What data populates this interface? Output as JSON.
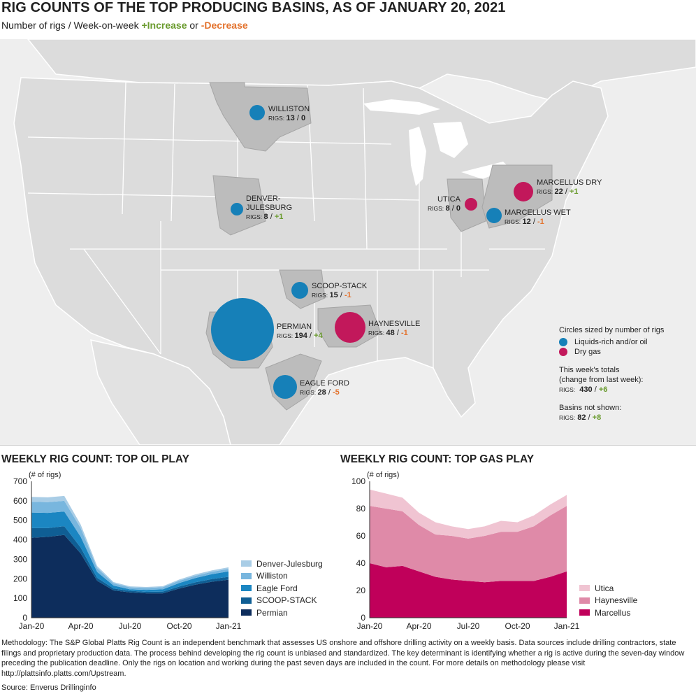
{
  "title": "RIG COUNTS OF THE TOP PRODUCING BASINS, AS OF JANUARY 20, 2021",
  "subtitle": {
    "prefix": "Number of rigs / Week-on-week ",
    "increase": "+Increase",
    "or": " or ",
    "decrease": "-Decrease"
  },
  "colors": {
    "oil": "#1680b8",
    "gas": "#c2185b",
    "increase": "#6a9b2e",
    "decrease": "#e3732e",
    "land": "#dcdcdc",
    "basin": "#bcbcbc"
  },
  "basins": [
    {
      "name": "WILLISTON",
      "rigs_label": "RIGS:",
      "rigs": "13",
      "sep": " / ",
      "change": "0",
      "change_type": "zero",
      "type": "oil"
    },
    {
      "name": "DENVER-",
      "name2": "JULESBURG",
      "rigs_label": "RIGS:",
      "rigs": "8",
      "sep": " / ",
      "change": "+1",
      "change_type": "inc",
      "type": "oil"
    },
    {
      "name": "MARCELLUS DRY",
      "rigs_label": "RIGS:",
      "rigs": "22",
      "sep": " / ",
      "change": "+1",
      "change_type": "inc",
      "type": "gas"
    },
    {
      "name": "UTICA",
      "rigs_label": "RIGS:",
      "rigs": "8",
      "sep": " / ",
      "change": "0",
      "change_type": "zero",
      "type": "gas"
    },
    {
      "name": "MARCELLUS WET",
      "rigs_label": "RIGS:",
      "rigs": "12",
      "sep": " / ",
      "change": "-1",
      "change_type": "dec",
      "type": "oil"
    },
    {
      "name": "SCOOP-STACK",
      "rigs_label": "RIGS:",
      "rigs": "15",
      "sep": " / ",
      "change": "-1",
      "change_type": "dec",
      "type": "oil"
    },
    {
      "name": "PERMIAN",
      "rigs_label": "RIGS:",
      "rigs": "194",
      "sep": " / ",
      "change": "+4",
      "change_type": "inc",
      "type": "oil"
    },
    {
      "name": "HAYNESVILLE",
      "rigs_label": "RIGS:",
      "rigs": "48",
      "sep": " / ",
      "change": "-1",
      "change_type": "dec",
      "type": "gas"
    },
    {
      "name": "EAGLE FORD",
      "rigs_label": "RIGS:",
      "rigs": "28",
      "sep": " / ",
      "change": "-5",
      "change_type": "dec",
      "type": "oil"
    }
  ],
  "map_legend": {
    "heading": "Circles sized by number of rigs",
    "oil_label": "Liquids-rich and/or oil",
    "gas_label": "Dry gas",
    "totals_line1": "This week's totals",
    "totals_line2": "(change from last week):",
    "totals_rigs_label": "RIGS:",
    "totals_value": "430",
    "totals_change": "+6",
    "not_shown": "Basins not shown:",
    "not_shown_rigs_label": "RIGS:",
    "not_shown_value": "82",
    "not_shown_change": "+8"
  },
  "oil_section_title": "WEEKLY RIG COUNT: TOP OIL PLAY",
  "gas_section_title": "WEEKLY RIG COUNT: TOP GAS PLAY",
  "chart_data": [
    {
      "type": "area",
      "stacked": true,
      "title": "WEEKLY RIG COUNT: TOP OIL PLAY",
      "ylabel": "(# of rigs)",
      "ylim": [
        0,
        700
      ],
      "yticks": [
        0,
        100,
        200,
        300,
        400,
        500,
        600,
        700
      ],
      "xticks": [
        "Jan-20",
        "Apr-20",
        "Jul-20",
        "Oct-20",
        "Jan-21"
      ],
      "x": [
        "Jan-20",
        "Feb-20",
        "Mar-20",
        "Apr-20",
        "May-20",
        "Jun-20",
        "Jul-20",
        "Aug-20",
        "Sep-20",
        "Oct-20",
        "Nov-20",
        "Dec-20",
        "Jan-21"
      ],
      "legend_position": "right",
      "series": [
        {
          "name": "Permian",
          "color": "#0d2d5c",
          "values": [
            410,
            415,
            425,
            330,
            190,
            140,
            130,
            125,
            125,
            150,
            170,
            185,
            195
          ]
        },
        {
          "name": "SCOOP-STACK",
          "color": "#0f5e94",
          "values": [
            50,
            45,
            45,
            30,
            15,
            10,
            8,
            8,
            9,
            10,
            12,
            14,
            15
          ]
        },
        {
          "name": "Eagle Ford",
          "color": "#1b86c2",
          "values": [
            80,
            78,
            75,
            55,
            30,
            15,
            8,
            10,
            12,
            18,
            22,
            25,
            28
          ]
        },
        {
          "name": "Williston",
          "color": "#78b6de",
          "values": [
            55,
            55,
            55,
            45,
            20,
            12,
            10,
            10,
            11,
            12,
            12,
            12,
            13
          ]
        },
        {
          "name": "Denver-Julesburg",
          "color": "#a9cde6",
          "values": [
            25,
            25,
            25,
            18,
            10,
            6,
            5,
            5,
            5,
            6,
            7,
            7,
            8
          ]
        }
      ]
    },
    {
      "type": "area",
      "stacked": true,
      "title": "WEEKLY RIG COUNT: TOP GAS PLAY",
      "ylabel": "(# of rigs)",
      "ylim": [
        0,
        100
      ],
      "yticks": [
        0,
        20,
        40,
        60,
        80,
        100
      ],
      "xticks": [
        "Jan-20",
        "Apr-20",
        "Jul-20",
        "Oct-20",
        "Jan-21"
      ],
      "x": [
        "Jan-20",
        "Feb-20",
        "Mar-20",
        "Apr-20",
        "May-20",
        "Jun-20",
        "Jul-20",
        "Aug-20",
        "Sep-20",
        "Oct-20",
        "Nov-20",
        "Dec-20",
        "Jan-21"
      ],
      "legend_position": "right",
      "series": [
        {
          "name": "Marcellus",
          "color": "#c0005a",
          "values": [
            40,
            37,
            38,
            34,
            30,
            28,
            27,
            26,
            27,
            27,
            27,
            30,
            34
          ]
        },
        {
          "name": "Haynesville",
          "color": "#df8aa8",
          "values": [
            42,
            43,
            40,
            34,
            31,
            32,
            31,
            34,
            36,
            36,
            40,
            45,
            48
          ]
        },
        {
          "name": "Utica",
          "color": "#f0c4d2",
          "values": [
            12,
            11,
            10,
            9,
            9,
            7,
            7,
            7,
            8,
            7,
            8,
            8,
            8
          ]
        }
      ]
    }
  ],
  "methodology": "Methodology: The S&P Global Platts Rig Count is an independent benchmark that assesses US onshore and offshore drilling activity on a weekly basis. Data sources include drilling contractors, state filings and proprietary production data. The process behind developing the rig count is unbiased and standardized. The key determinant is identifying whether a rig is active during the seven-day window preceding the publication deadline. Only the rigs on location and working during the past seven days are included in the count. For more details on methodology please visit http://plattsinfo.platts.com/Upstream.",
  "source": "Source: Enverus Drillinginfo"
}
